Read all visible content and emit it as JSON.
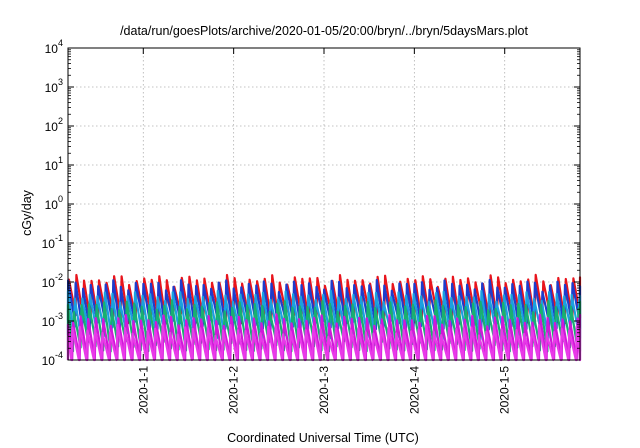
{
  "chart_data": {
    "type": "line",
    "title": "/data/run/goesPlots/archive/2020-01-05/20:00/bryn/../bryn/5daysMars.plot",
    "xlabel": "Coordinated Universal Time (UTC)",
    "ylabel": "cGy/day",
    "yscale": "log",
    "ylim": [
      0.0001,
      10000
    ],
    "y_ticks": [
      {
        "base": "10",
        "exp": "-4",
        "value": 0.0001
      },
      {
        "base": "10",
        "exp": "-3",
        "value": 0.001
      },
      {
        "base": "10",
        "exp": "-2",
        "value": 0.01
      },
      {
        "base": "10",
        "exp": "-1",
        "value": 0.1
      },
      {
        "base": "10",
        "exp": "0",
        "value": 1
      },
      {
        "base": "10",
        "exp": "1",
        "value": 10
      },
      {
        "base": "10",
        "exp": "2",
        "value": 100
      },
      {
        "base": "10",
        "exp": "3",
        "value": 1000
      },
      {
        "base": "10",
        "exp": "4",
        "value": 10000
      }
    ],
    "xlim": [
      "2019-12-31T04:00",
      "2020-01-05T20:00"
    ],
    "x_ticks": [
      "2020-1-1",
      "2020-1-2",
      "2020-1-3",
      "2020-1-4",
      "2020-1-5"
    ],
    "grid": true,
    "legend": "none",
    "sawtooth_period_hours": 2,
    "series": [
      {
        "color": "#e8141c",
        "peak": 0.0115,
        "trough": 0.0013
      },
      {
        "color": "#1e3ccc",
        "peak": 0.0085,
        "trough": 0.0009
      },
      {
        "color": "#1aa0e0",
        "peak": 0.0045,
        "trough": 0.0005
      },
      {
        "color": "#18b070",
        "peak": 0.0025,
        "trough": 0.00025
      },
      {
        "color": "#d018d8",
        "peak": 0.0011,
        "trough": 9e-05
      },
      {
        "color": "#e83ae8",
        "peak": 0.0006,
        "trough": 6e-05
      }
    ]
  }
}
